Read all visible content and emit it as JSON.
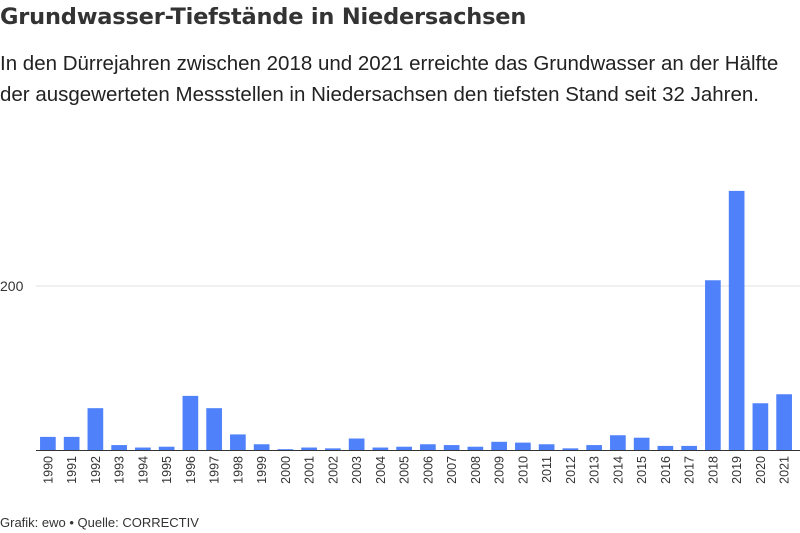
{
  "header": {
    "title": "Grundwasser-Tiefstände in Niedersachsen",
    "subtitle": "In den Dürrejahren zwischen 2018 und 2021 erreichte das Grundwasser an der Hälfte der ausgewerteten Messstellen in Niedersachsen den tiefsten Stand seit 32 Jahren."
  },
  "footer": {
    "credit": "Grafik: ewo • Quelle: CORRECTIV"
  },
  "colors": {
    "bar": "#4f81fa",
    "grid": "#e1e1e1",
    "axis": "#333333"
  },
  "chart_data": {
    "type": "bar",
    "title": "Grundwasser-Tiefstände in Niedersachsen",
    "xlabel": "",
    "ylabel": "",
    "ylim": [
      0,
      400
    ],
    "yticks": [
      200
    ],
    "grid": true,
    "categories": [
      "1990",
      "1991",
      "1992",
      "1993",
      "1994",
      "1995",
      "1996",
      "1997",
      "1998",
      "1999",
      "2000",
      "2001",
      "2002",
      "2003",
      "2004",
      "2005",
      "2006",
      "2007",
      "2008",
      "2009",
      "2010",
      "2011",
      "2012",
      "2013",
      "2014",
      "2015",
      "2016",
      "2017",
      "2018",
      "2019",
      "2020",
      "2021"
    ],
    "values": [
      16,
      16,
      51,
      6,
      3,
      4,
      66,
      51,
      19,
      7,
      1,
      3,
      2,
      14,
      3,
      4,
      7,
      6,
      4,
      10,
      9,
      7,
      2,
      6,
      18,
      15,
      5,
      5,
      207,
      316,
      57,
      68
    ]
  }
}
